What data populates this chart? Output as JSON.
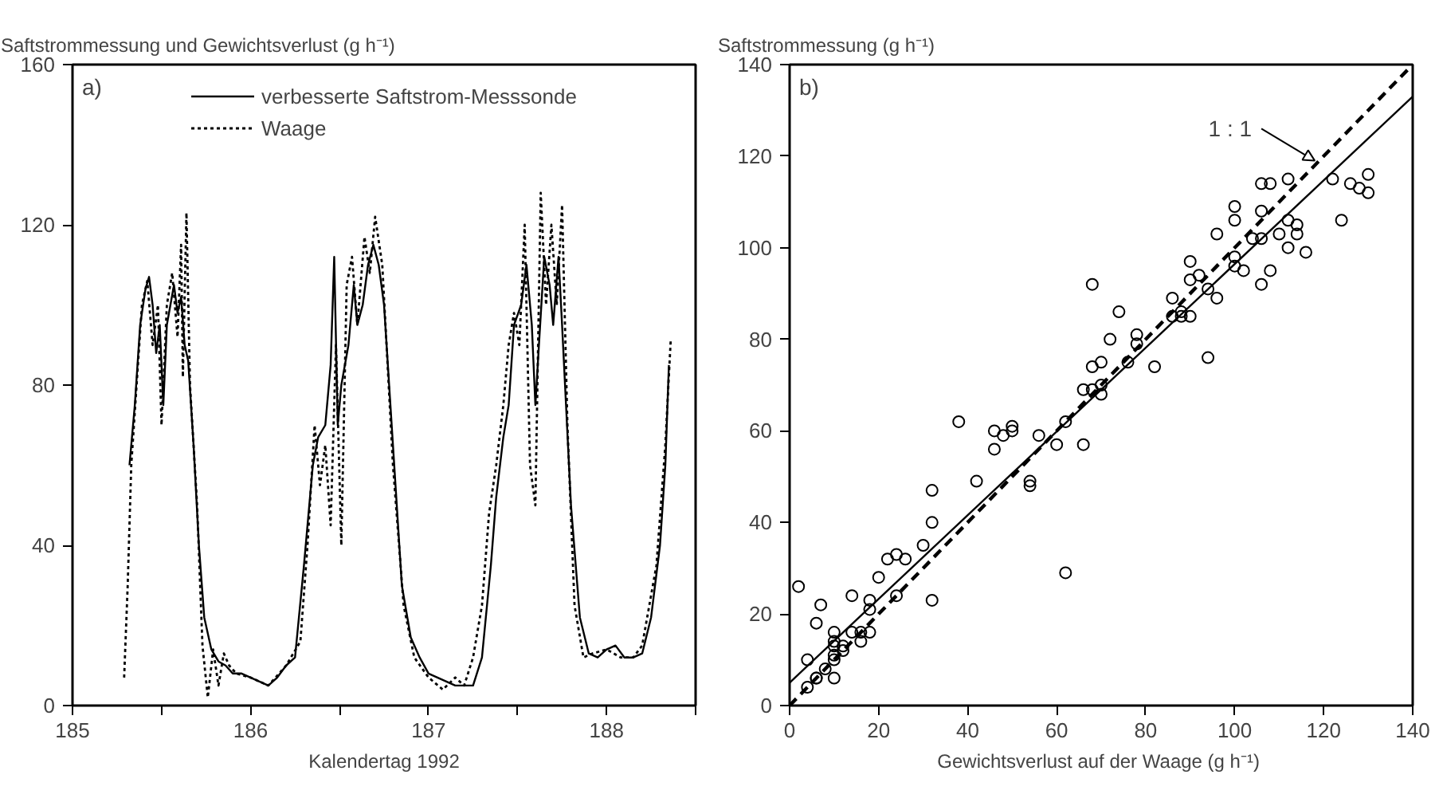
{
  "chart_data": [
    {
      "type": "line",
      "ylabel": "Saftstrommessung und Gewichtsverlust  (g h⁻¹)",
      "xlabel": "Kalendertag 1992",
      "xlim": [
        185,
        188.5
      ],
      "ylim": [
        0,
        160
      ],
      "xticks": [
        185,
        {
          "value": 185.5,
          "label": null
        },
        186,
        {
          "value": 186.5,
          "label": null
        },
        187,
        {
          "value": 187.5,
          "label": null
        },
        188,
        {
          "value": 188.5,
          "label": null
        }
      ],
      "yticks": [
        0,
        40,
        80,
        120,
        160
      ],
      "legend": "top",
      "annotations": [
        "a)"
      ],
      "series": [
        {
          "name": "verbesserte Saftstrom-Messsonde",
          "color": "#000000",
          "line_style": "solid",
          "x": [
            185.32,
            185.35,
            185.38,
            185.41,
            185.43,
            185.45,
            185.47,
            185.49,
            185.51,
            185.53,
            185.55,
            185.57,
            185.59,
            185.61,
            185.63,
            185.65,
            185.68,
            185.71,
            185.74,
            185.78,
            185.82,
            185.86,
            185.9,
            185.95,
            186.0,
            186.05,
            186.1,
            186.15,
            186.2,
            186.25,
            186.3,
            186.35,
            186.38,
            186.42,
            186.45,
            186.47,
            186.49,
            186.51,
            186.55,
            186.58,
            186.6,
            186.63,
            186.66,
            186.69,
            186.72,
            186.75,
            186.8,
            186.85,
            186.9,
            186.95,
            187.0,
            187.05,
            187.1,
            187.15,
            187.2,
            187.25,
            187.3,
            187.35,
            187.38,
            187.42,
            187.45,
            187.48,
            187.52,
            187.55,
            187.58,
            187.6,
            187.62,
            187.65,
            187.68,
            187.7,
            187.73,
            187.75,
            187.8,
            187.85,
            187.9,
            187.95,
            188.0,
            188.05,
            188.1,
            188.15,
            188.2,
            188.25,
            188.3,
            188.33,
            188.35
          ],
          "values": [
            60,
            75,
            95,
            104,
            107,
            100,
            88,
            95,
            75,
            95,
            100,
            105,
            98,
            102,
            90,
            86,
            65,
            40,
            22,
            14,
            11,
            10,
            8,
            8,
            7,
            6,
            5,
            7,
            10,
            12,
            35,
            60,
            67,
            70,
            85,
            112,
            70,
            80,
            90,
            105,
            95,
            100,
            110,
            115,
            110,
            100,
            65,
            30,
            17,
            12,
            8,
            7,
            6,
            5,
            5,
            5,
            12,
            35,
            52,
            67,
            75,
            95,
            100,
            110,
            95,
            75,
            90,
            112,
            105,
            95,
            112,
            95,
            50,
            22,
            13,
            12,
            14,
            15,
            12,
            12,
            13,
            22,
            40,
            60,
            85
          ]
        },
        {
          "name": "Waage",
          "color": "#000000",
          "line_style": "dotted",
          "x": [
            185.29,
            185.31,
            185.33,
            185.36,
            185.39,
            185.42,
            185.45,
            185.48,
            185.5,
            185.53,
            185.56,
            185.59,
            185.61,
            185.62,
            185.64,
            185.66,
            185.7,
            185.73,
            185.76,
            185.79,
            185.82,
            185.85,
            185.88,
            185.92,
            186.0,
            186.1,
            186.2,
            186.28,
            186.32,
            186.36,
            186.39,
            186.42,
            186.45,
            186.48,
            186.51,
            186.54,
            186.57,
            186.6,
            186.64,
            186.67,
            186.7,
            186.74,
            186.8,
            186.86,
            186.92,
            187.0,
            187.08,
            187.15,
            187.2,
            187.25,
            187.3,
            187.34,
            187.38,
            187.42,
            187.45,
            187.48,
            187.51,
            187.54,
            187.57,
            187.6,
            187.63,
            187.66,
            187.69,
            187.72,
            187.75,
            187.78,
            187.82,
            187.87,
            187.92,
            188.0,
            188.08,
            188.15,
            188.2,
            188.28,
            188.33,
            188.36
          ],
          "values": [
            7,
            30,
            60,
            80,
            100,
            106,
            90,
            100,
            70,
            100,
            108,
            92,
            115,
            82,
            123,
            80,
            50,
            15,
            2,
            14,
            5,
            13,
            10,
            8,
            7,
            5,
            10,
            16,
            40,
            70,
            55,
            65,
            45,
            90,
            40,
            105,
            112,
            95,
            117,
            108,
            122,
            110,
            60,
            25,
            12,
            7,
            4,
            7,
            5,
            12,
            25,
            48,
            60,
            75,
            90,
            98,
            90,
            120,
            60,
            50,
            128,
            100,
            120,
            100,
            125,
            70,
            25,
            12,
            13,
            14,
            12,
            12,
            15,
            35,
            65,
            91
          ]
        }
      ]
    },
    {
      "type": "scatter",
      "ylabel": "Saftstrommessung  (g h⁻¹)",
      "xlabel": "Gewichtsverlust auf der Waage  (g h⁻¹)",
      "xlim": [
        0,
        140
      ],
      "ylim": [
        0,
        140
      ],
      "xticks": [
        0,
        20,
        40,
        60,
        80,
        100,
        120,
        140
      ],
      "yticks": [
        0,
        20,
        40,
        60,
        80,
        100,
        120,
        140
      ],
      "annotations": [
        "b)",
        {
          "text": "1 : 1",
          "x": 118,
          "y": 118
        }
      ],
      "series": [
        {
          "type": "scatter",
          "marker": "circle",
          "color": "#000000",
          "x": [
            2,
            4,
            4,
            6,
            6,
            6,
            7,
            8,
            10,
            10,
            10,
            10,
            10,
            10,
            12,
            12,
            14,
            14,
            16,
            16,
            18,
            18,
            18,
            20,
            22,
            24,
            26,
            24,
            30,
            32,
            32,
            32,
            38,
            42,
            46,
            46,
            48,
            50,
            50,
            54,
            54,
            56,
            60,
            62,
            62,
            66,
            66,
            68,
            68,
            68,
            70,
            70,
            70,
            72,
            74,
            76,
            78,
            78,
            82,
            86,
            86,
            88,
            88,
            90,
            90,
            90,
            92,
            94,
            94,
            96,
            96,
            100,
            100,
            100,
            100,
            102,
            104,
            106,
            108,
            106,
            106,
            106,
            108,
            110,
            112,
            112,
            112,
            114,
            114,
            116,
            122,
            124,
            126,
            128,
            130,
            130
          ],
          "values": [
            26,
            10,
            4,
            6,
            6,
            18,
            22,
            8,
            16,
            14,
            13,
            11,
            10,
            6,
            13,
            12,
            16,
            24,
            16,
            14,
            16,
            21,
            23,
            28,
            32,
            33,
            32,
            24,
            35,
            47,
            40,
            23,
            62,
            49,
            60,
            56,
            59,
            61,
            60,
            49,
            48,
            59,
            57,
            62,
            29,
            57,
            69,
            74,
            92,
            69,
            75,
            70,
            68,
            80,
            86,
            75,
            81,
            79,
            74,
            89,
            85,
            86,
            85,
            97,
            93,
            85,
            94,
            91,
            76,
            89,
            103,
            109,
            106,
            98,
            96,
            95,
            102,
            114,
            114,
            108,
            102,
            92,
            95,
            103,
            115,
            106,
            100,
            105,
            103,
            99,
            115,
            106,
            114,
            113,
            116,
            112
          ]
        },
        {
          "type": "line",
          "color": "#000000",
          "line_style": "solid",
          "x": [
            0,
            140
          ],
          "values": [
            5,
            133
          ]
        },
        {
          "type": "line",
          "color": "#000000",
          "line_style": "dashed",
          "x": [
            0,
            140
          ],
          "values": [
            0,
            140
          ]
        }
      ]
    }
  ]
}
